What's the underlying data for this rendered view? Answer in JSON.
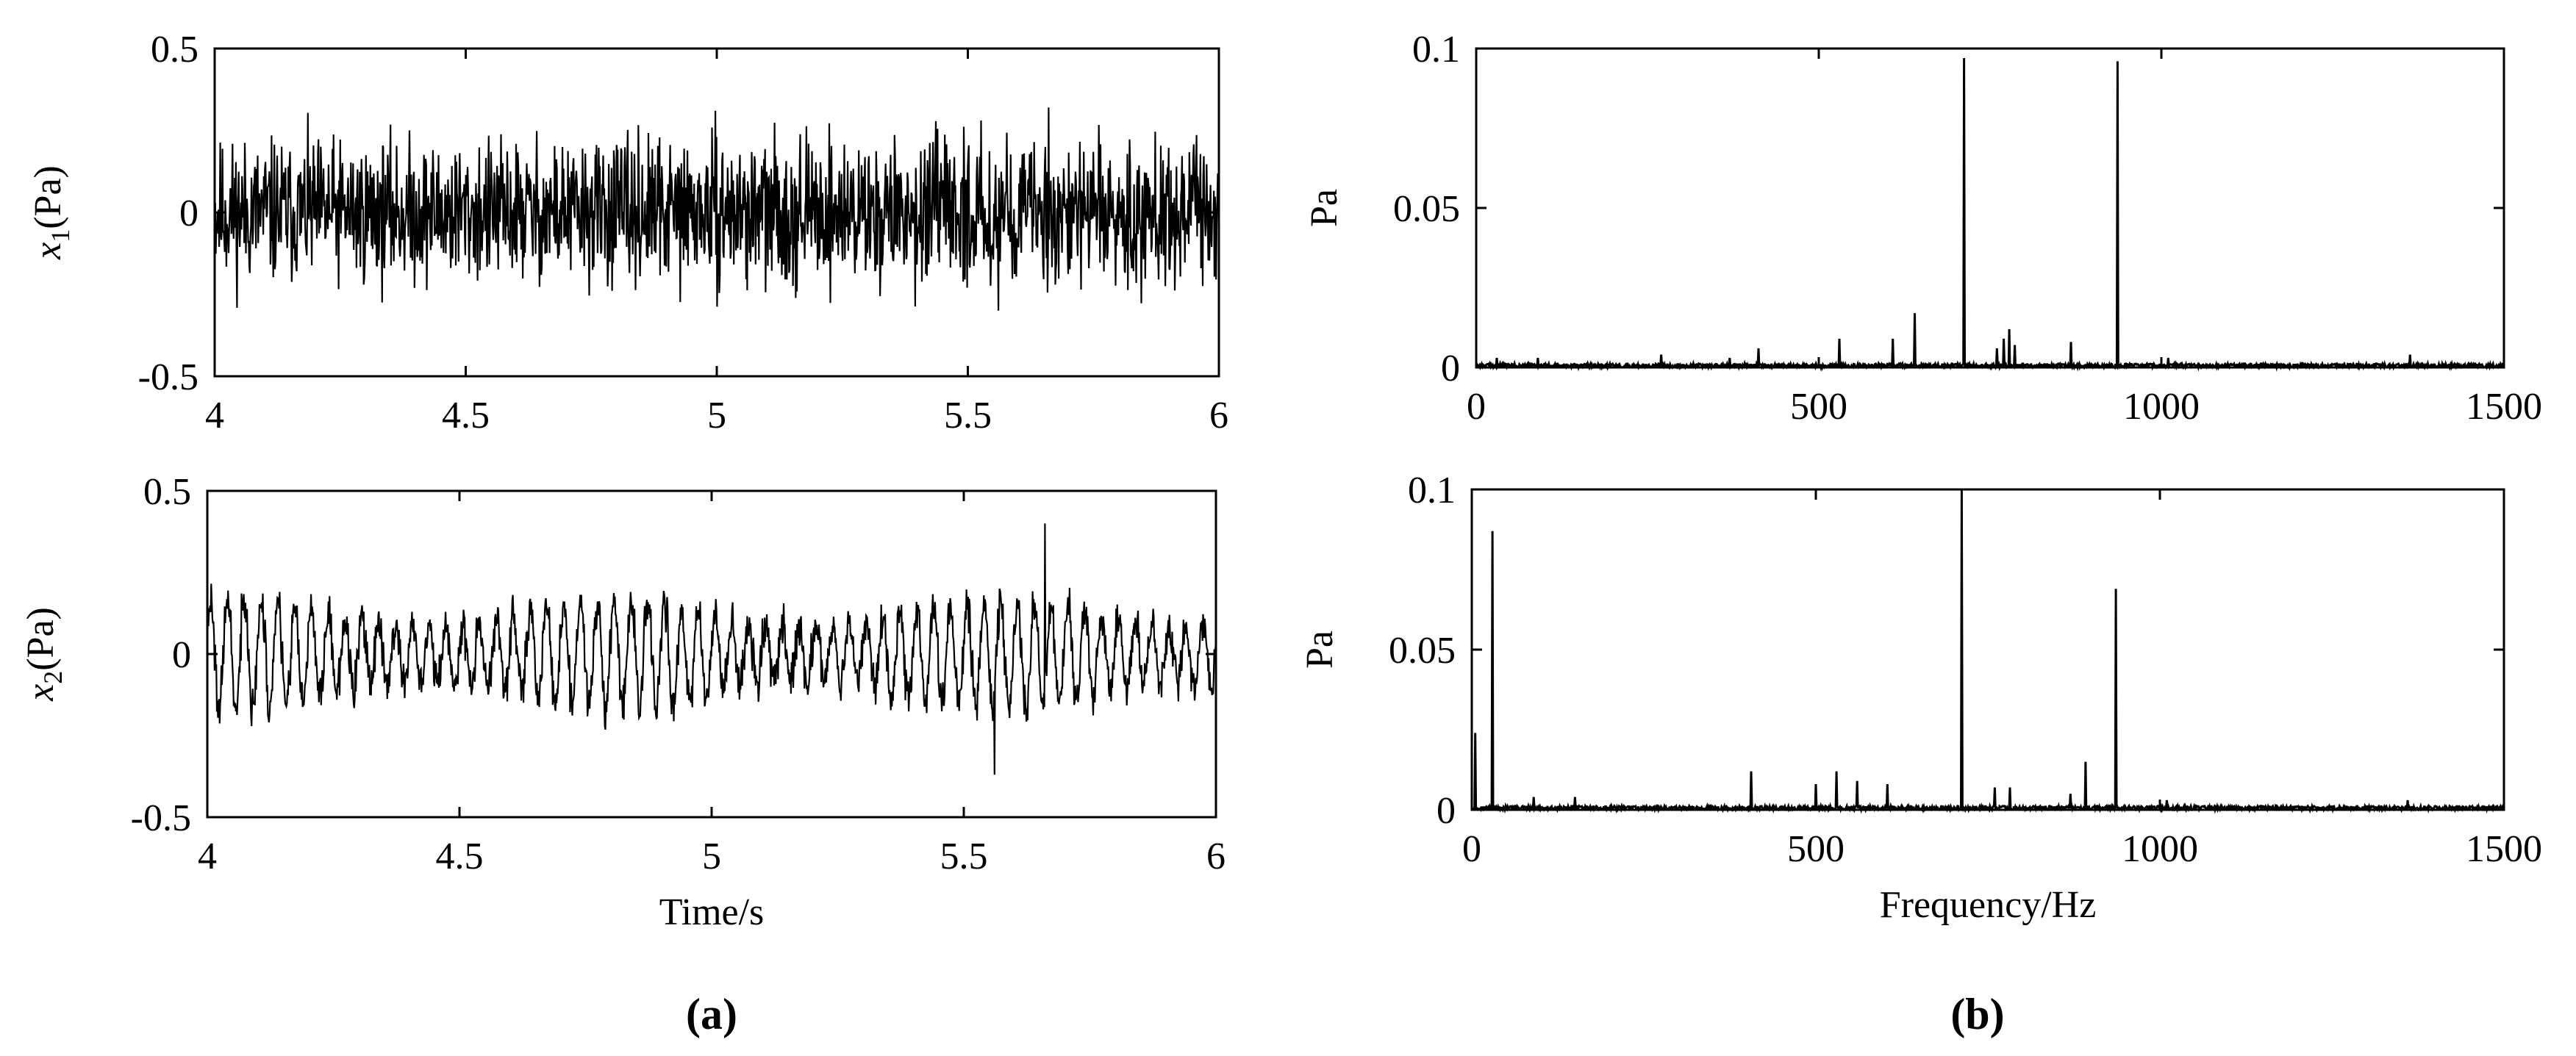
{
  "figure": {
    "panel_a_label": "(a)",
    "panel_b_label": "(b)",
    "line_color": "#000000"
  },
  "chart_data": [
    {
      "id": "x1-time",
      "type": "line",
      "title": "",
      "xlabel": "",
      "ylabel_var": "x",
      "ylabel_sub": "1",
      "ylabel_unit": "(Pa)",
      "xlim": [
        4,
        6
      ],
      "ylim": [
        -0.5,
        0.5
      ],
      "xticks": [
        4,
        4.5,
        5,
        5.5,
        6
      ],
      "xticklabels": [
        "4",
        "4.5",
        "5",
        "5.5",
        "6"
      ],
      "yticks": [
        -0.5,
        0,
        0.5
      ],
      "yticklabels": [
        "-0.5",
        "0",
        "0.5"
      ],
      "signal": {
        "kind": "noise",
        "samples": 1800,
        "amplitude_rms": 0.085,
        "peak_max": 0.32,
        "peak_min": -0.3,
        "seed": 11
      },
      "grid": false
    },
    {
      "id": "x2-time",
      "type": "line",
      "title": "",
      "xlabel": "Time/s",
      "ylabel_var": "x",
      "ylabel_sub": "2",
      "ylabel_unit": "(Pa)",
      "xlim": [
        4,
        6
      ],
      "ylim": [
        -0.5,
        0.5
      ],
      "xticks": [
        4,
        4.5,
        5,
        5.5,
        6
      ],
      "xticklabels": [
        "4",
        "4.5",
        "5",
        "5.5",
        "6"
      ],
      "yticks": [
        -0.5,
        0,
        0.5
      ],
      "yticklabels": [
        "-0.5",
        "0",
        "0.5"
      ],
      "signal": {
        "kind": "modulated",
        "samples": 1800,
        "carrier_hz": 30,
        "carrier_amp": 0.17,
        "noise_amp": 0.07,
        "peak_max": 0.4,
        "peak_min": -0.37,
        "seed": 23
      },
      "grid": false
    },
    {
      "id": "x1-spectrum",
      "type": "line",
      "title": "",
      "xlabel": "",
      "ylabel": "Pa",
      "xlim": [
        0,
        1500
      ],
      "ylim": [
        0,
        0.1
      ],
      "xticks": [
        0,
        500,
        1000,
        1500
      ],
      "xticklabels": [
        "0",
        "500",
        "1000",
        "1500"
      ],
      "yticks": [
        0,
        0.05,
        0.1
      ],
      "yticklabels": [
        "0",
        "0.05",
        "0.1"
      ],
      "peaks": [
        {
          "f": 712,
          "a": 0.097
        },
        {
          "f": 936,
          "a": 0.096
        },
        {
          "f": 640,
          "a": 0.017
        },
        {
          "f": 778,
          "a": 0.012
        },
        {
          "f": 770,
          "a": 0.009
        },
        {
          "f": 786,
          "a": 0.007
        },
        {
          "f": 530,
          "a": 0.009
        },
        {
          "f": 608,
          "a": 0.009
        },
        {
          "f": 868,
          "a": 0.008
        },
        {
          "f": 760,
          "a": 0.006
        },
        {
          "f": 412,
          "a": 0.006
        },
        {
          "f": 270,
          "a": 0.004
        },
        {
          "f": 1363,
          "a": 0.004
        },
        {
          "f": 90,
          "a": 0.003
        },
        {
          "f": 30,
          "a": 0.003
        },
        {
          "f": 370,
          "a": 0.003
        },
        {
          "f": 1010,
          "a": 0.003
        }
      ],
      "noise_floor": 0.0012,
      "grid": false
    },
    {
      "id": "x2-spectrum",
      "type": "line",
      "title": "",
      "xlabel": "Frequency/Hz",
      "ylabel": "Pa",
      "xlim": [
        0,
        1500
      ],
      "ylim": [
        0,
        0.1
      ],
      "xticks": [
        0,
        500,
        1000,
        1500
      ],
      "xticklabels": [
        "0",
        "500",
        "1000",
        "1500"
      ],
      "yticks": [
        0,
        0.05,
        0.1
      ],
      "yticklabels": [
        "0",
        "0.05",
        "0.1"
      ],
      "peaks": [
        {
          "f": 712,
          "a": 0.1
        },
        {
          "f": 30,
          "a": 0.087
        },
        {
          "f": 936,
          "a": 0.069
        },
        {
          "f": 5,
          "a": 0.024
        },
        {
          "f": 892,
          "a": 0.015
        },
        {
          "f": 406,
          "a": 0.012
        },
        {
          "f": 530,
          "a": 0.012
        },
        {
          "f": 500,
          "a": 0.008
        },
        {
          "f": 560,
          "a": 0.009
        },
        {
          "f": 604,
          "a": 0.008
        },
        {
          "f": 760,
          "a": 0.007
        },
        {
          "f": 782,
          "a": 0.007
        },
        {
          "f": 870,
          "a": 0.005
        },
        {
          "f": 90,
          "a": 0.004
        },
        {
          "f": 150,
          "a": 0.004
        },
        {
          "f": 1360,
          "a": 0.003
        },
        {
          "f": 1010,
          "a": 0.003
        }
      ],
      "noise_floor": 0.0012,
      "grid": false
    }
  ]
}
